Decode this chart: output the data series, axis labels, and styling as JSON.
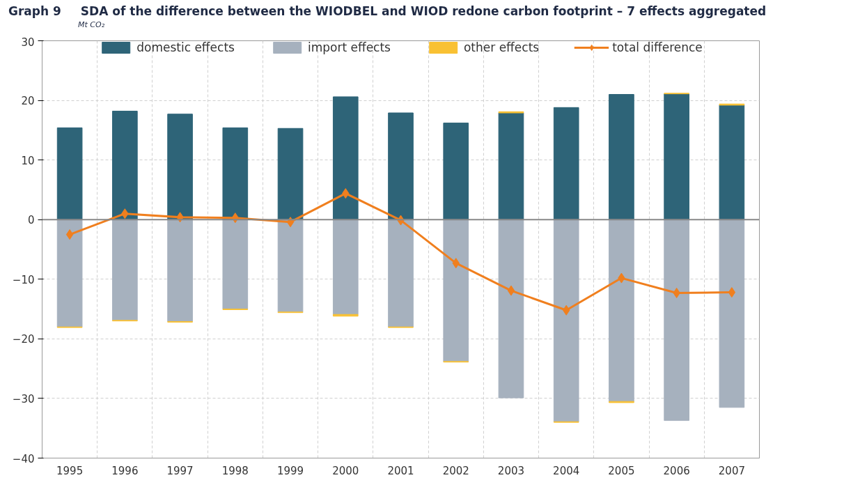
{
  "chart_data": {
    "type": "bar",
    "stacked": true,
    "title": "SDA of the difference between the WIODBEL and WIOD redone carbon footprint – 7 effects aggregated",
    "subtitle": "Mt CO₂",
    "annotations": [
      "Graph 9"
    ],
    "categories": [
      "1995",
      "1996",
      "1997",
      "1998",
      "1999",
      "2000",
      "2001",
      "2002",
      "2003",
      "2004",
      "2005",
      "2006",
      "2007"
    ],
    "series": [
      {
        "name": "domestic effects",
        "color": "#2e6478",
        "values": [
          15.4,
          18.2,
          17.7,
          15.4,
          15.3,
          20.6,
          17.9,
          16.2,
          17.9,
          18.8,
          21.0,
          21.1,
          19.2
        ]
      },
      {
        "name": "import effects",
        "color": "#a6b1be",
        "values": [
          -18.0,
          -16.9,
          -17.1,
          -15.0,
          -15.5,
          -15.9,
          -18.0,
          -23.8,
          -29.9,
          -33.9,
          -30.5,
          -33.7,
          -31.5
        ]
      },
      {
        "name": "other effects",
        "color": "#f9c133",
        "values": [
          -0.1,
          -0.1,
          -0.1,
          -0.1,
          -0.1,
          -0.3,
          -0.1,
          -0.1,
          0.2,
          -0.1,
          -0.2,
          0.1,
          0.2
        ]
      },
      {
        "name": "total difference",
        "type": "line",
        "color": "#f07f1e",
        "marker": "diamond",
        "values": [
          -2.5,
          1.0,
          0.4,
          0.3,
          -0.4,
          4.4,
          -0.1,
          -7.3,
          -11.9,
          -15.2,
          -9.8,
          -12.3,
          -12.2
        ]
      }
    ],
    "ylim": [
      -40,
      30
    ],
    "yticks": [
      -40,
      -30,
      -20,
      -10,
      0,
      10,
      20,
      30
    ],
    "grid": true,
    "legend": "top"
  }
}
